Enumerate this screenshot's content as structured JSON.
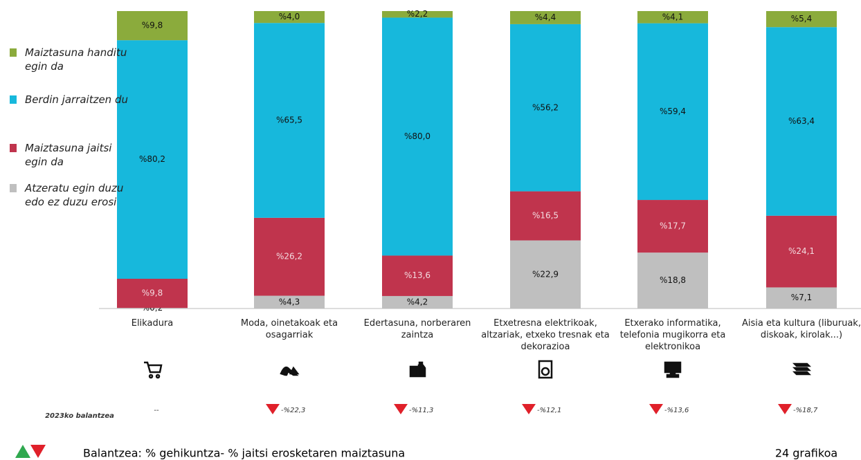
{
  "chart_data": {
    "type": "stacked-bar",
    "categories": [
      "Elikadura",
      "Moda, oinetakoak eta osagarriak",
      "Edertasuna, norberaren zaintza",
      "Etxetresna elektrikoak, altzariak, etxeko tresnak eta dekorazioa",
      "Etxerako informatika, telefonia mugikorra eta elektronikoa",
      "Aisia eta kultura (liburuak, diskoak, kirolak...)"
    ],
    "ylim": [
      0,
      100
    ],
    "series": [
      {
        "name": "Atzeratu egin duzu edo ez duzu erosi",
        "color": "#bfbfbf",
        "values": [
          0.2,
          4.3,
          4.2,
          22.9,
          18.8,
          7.1
        ],
        "value_labels": [
          "%0,2",
          "%4,3",
          "%4,2",
          "%22,9",
          "%18,8",
          "%7,1"
        ]
      },
      {
        "name": "Maiztasuna jaitsi egin da",
        "color": "#c0344d",
        "values": [
          9.8,
          26.2,
          13.6,
          16.5,
          17.7,
          24.1
        ],
        "value_labels": [
          "%9,8",
          "%26,2",
          "%13,6",
          "%16,5",
          "%17,7",
          "%24,1"
        ]
      },
      {
        "name": "Berdin jarraitzen du",
        "color": "#17b8dc",
        "values": [
          80.2,
          65.5,
          80.0,
          56.2,
          59.4,
          63.4
        ],
        "value_labels": [
          "%80,2",
          "%65,5",
          "%80,0",
          "%56,2",
          "%59,4",
          "%63,4"
        ]
      },
      {
        "name": "Maiztasuna handitu egin da",
        "color": "#8bab3c",
        "values": [
          9.8,
          4.0,
          2.2,
          4.4,
          4.1,
          5.4
        ],
        "value_labels": [
          "%9,8",
          "%4,0",
          "%2,2",
          "%4,4",
          "%4,1",
          "%5,4"
        ]
      }
    ],
    "balance": {
      "label": "2023ko balantzea",
      "values": [
        null,
        -22.3,
        -11.3,
        -12.1,
        -13.6,
        -18.7
      ],
      "value_labels": [
        "--",
        "-%22,3",
        "-%11,3",
        "-%12,1",
        "-%13,6",
        "-%18,7"
      ]
    },
    "note": "Balantzea: % gehikuntza- % jaitsi erosketaren maiztasuna",
    "figure_label": "24 grafikoa"
  }
}
